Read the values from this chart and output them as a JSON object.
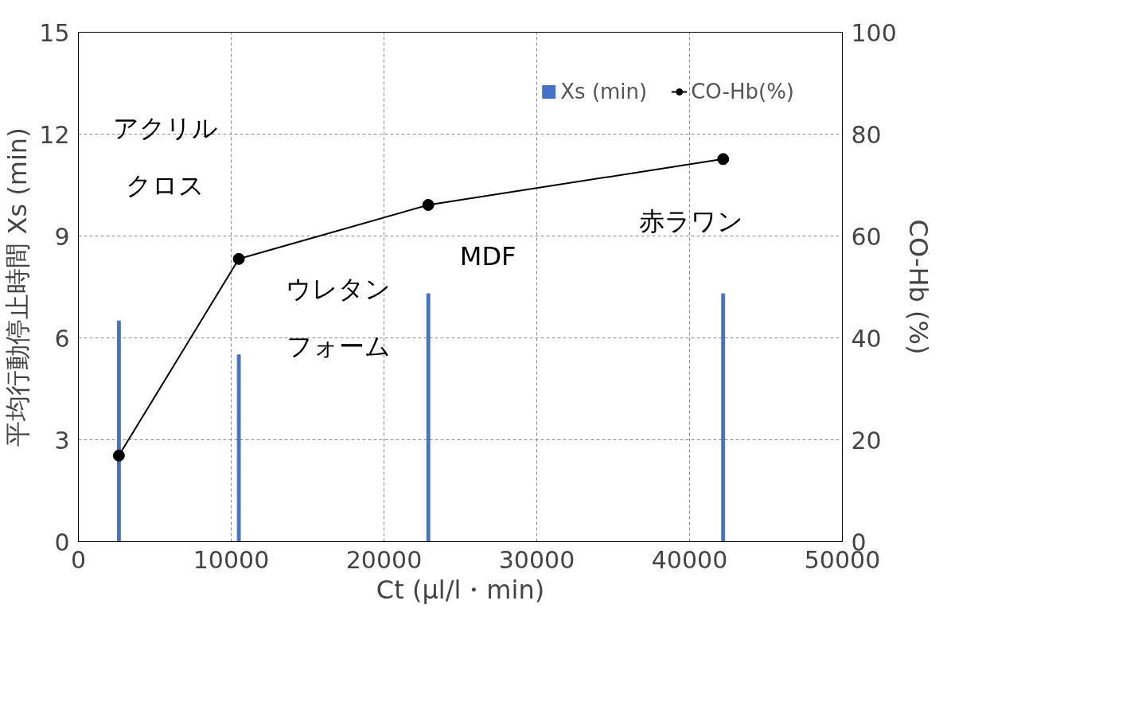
{
  "chart_data": {
    "type": "bar",
    "xlabel": "Ct (μl/l・min)",
    "ylabel": "平均行動停止時間 Xs (min)",
    "y2label": "CO-Hb (%)",
    "x": [
      2650,
      10500,
      22900,
      42200
    ],
    "series": [
      {
        "name": "Xs (min)",
        "color": "#4472c4",
        "values": [
          6.5,
          5.5,
          7.3,
          7.3
        ]
      },
      {
        "name": "CO-Hb(%)",
        "type": "line",
        "axis": "y2",
        "color": "#000000",
        "marker": "circle",
        "values": [
          16.9,
          55.5,
          66.1,
          75.1
        ]
      }
    ],
    "xlim": [
      0,
      50000
    ],
    "xticks": [
      0,
      10000,
      20000,
      30000,
      40000,
      50000
    ],
    "ylim": [
      0,
      15
    ],
    "yticks": [
      0,
      3,
      6,
      9,
      12,
      15
    ],
    "y2lim": [
      0,
      100
    ],
    "y2ticks": [
      0,
      20,
      40,
      60,
      80,
      100
    ],
    "grid": true,
    "legend": "top right",
    "annotations": [
      "アクリルクロス",
      {
        "text": "ウレタンフォーム",
        "x": 10500,
        "y": 5.5
      },
      {
        "text": "MDF",
        "x": 22900,
        "y": 7.3
      },
      {
        "text": "赤ラワン",
        "x": 42200,
        "y": 7.3
      }
    ]
  }
}
